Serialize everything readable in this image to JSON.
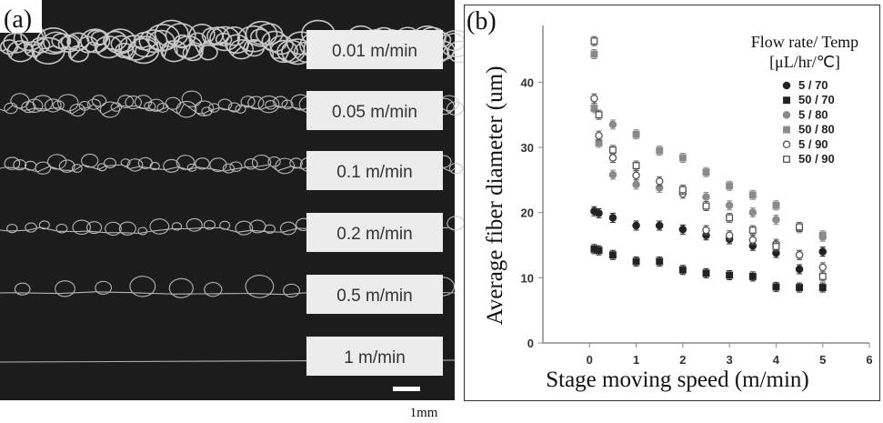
{
  "panel_a": {
    "label": "(a)",
    "speed_labels": [
      "0.01 m/min",
      "0.05 m/min",
      "0.1 m/min",
      "0.2 m/min",
      "0.5 m/min",
      "1 m/min"
    ],
    "scale_bar": "1mm"
  },
  "chart_data": {
    "type": "scatter",
    "panel_label": "(b)",
    "xlabel": "Stage moving speed (m/min)",
    "ylabel": "Average fiber diameter (um)",
    "xlim": [
      -1,
      6
    ],
    "ylim": [
      0,
      48
    ],
    "xticks": [
      "0",
      "1",
      "2",
      "3",
      "4",
      "5",
      "6"
    ],
    "yticks": [
      "0",
      "10",
      "20",
      "30",
      "40"
    ],
    "grid": false,
    "legend_title": [
      "Flow rate/ Temp",
      "[μL/hr/℃]"
    ],
    "legend_placement": "top-right",
    "series": [
      {
        "name": "5 / 70",
        "marker": "filled-circle",
        "color": "#222222",
        "points": [
          [
            0.1,
            20.2
          ],
          [
            0.2,
            19.9
          ],
          [
            0.5,
            19.2
          ],
          [
            1,
            18
          ],
          [
            1.5,
            18
          ],
          [
            2,
            17.4
          ],
          [
            2.5,
            16.5
          ],
          [
            3,
            15.9
          ],
          [
            3.5,
            14.9
          ],
          [
            4,
            13.8
          ],
          [
            4.5,
            11.3
          ],
          [
            5,
            14
          ]
        ]
      },
      {
        "name": "50 / 70",
        "marker": "filled-square",
        "color": "#222222",
        "points": [
          [
            0.1,
            14.4
          ],
          [
            0.2,
            14.2
          ],
          [
            0.5,
            13.5
          ],
          [
            1,
            12.5
          ],
          [
            1.5,
            12.5
          ],
          [
            2,
            11.2
          ],
          [
            2.5,
            10.7
          ],
          [
            3,
            10.4
          ],
          [
            3.5,
            10.2
          ],
          [
            4,
            8.6
          ],
          [
            4.5,
            8.5
          ],
          [
            5,
            8.5
          ]
        ]
      },
      {
        "name": "5 / 80",
        "marker": "gray-circle",
        "color": "#8a8a8a",
        "points": [
          [
            0.5,
            33.5
          ],
          [
            0.5,
            25.8
          ],
          [
            1,
            24.3
          ],
          [
            1.5,
            23.8
          ],
          [
            2,
            23.2
          ],
          [
            2.5,
            22.4
          ],
          [
            3,
            21.1
          ],
          [
            3.5,
            20
          ],
          [
            4,
            18.9
          ],
          [
            4.5,
            13.5
          ],
          [
            5,
            16.3
          ]
        ]
      },
      {
        "name": "50 / 80",
        "marker": "gray-square",
        "color": "#8a8a8a",
        "points": [
          [
            0.1,
            44.3
          ],
          [
            0.1,
            36
          ],
          [
            0.2,
            30.7
          ],
          [
            1,
            32
          ],
          [
            1.5,
            29.5
          ],
          [
            2,
            28.4
          ],
          [
            2.5,
            26.2
          ],
          [
            3,
            24.1
          ],
          [
            3.5,
            22.7
          ],
          [
            4,
            21.1
          ],
          [
            4.5,
            17.6
          ],
          [
            5,
            16.5
          ]
        ]
      },
      {
        "name": "5 / 90",
        "marker": "open-circle",
        "color": "#555555",
        "points": [
          [
            0.1,
            37.5
          ],
          [
            0.2,
            31.8
          ],
          [
            0.5,
            28.4
          ],
          [
            1,
            25.7
          ],
          [
            1.5,
            24.8
          ],
          [
            2,
            22.9
          ],
          [
            2.5,
            17.3
          ],
          [
            3,
            16.5
          ],
          [
            3.5,
            15.8
          ],
          [
            4,
            15.2
          ],
          [
            4.5,
            13.5
          ],
          [
            5,
            11.6
          ]
        ]
      },
      {
        "name": "50 / 90",
        "marker": "open-square",
        "color": "#555555",
        "points": [
          [
            0.1,
            46.3
          ],
          [
            0.2,
            35
          ],
          [
            0.5,
            29.6
          ],
          [
            1,
            27.2
          ],
          [
            2,
            23.5
          ],
          [
            2.5,
            21
          ],
          [
            3,
            19.2
          ],
          [
            3.5,
            17.3
          ],
          [
            4,
            14.8
          ],
          [
            4.5,
            17.8
          ],
          [
            5,
            10.2
          ]
        ]
      }
    ]
  }
}
